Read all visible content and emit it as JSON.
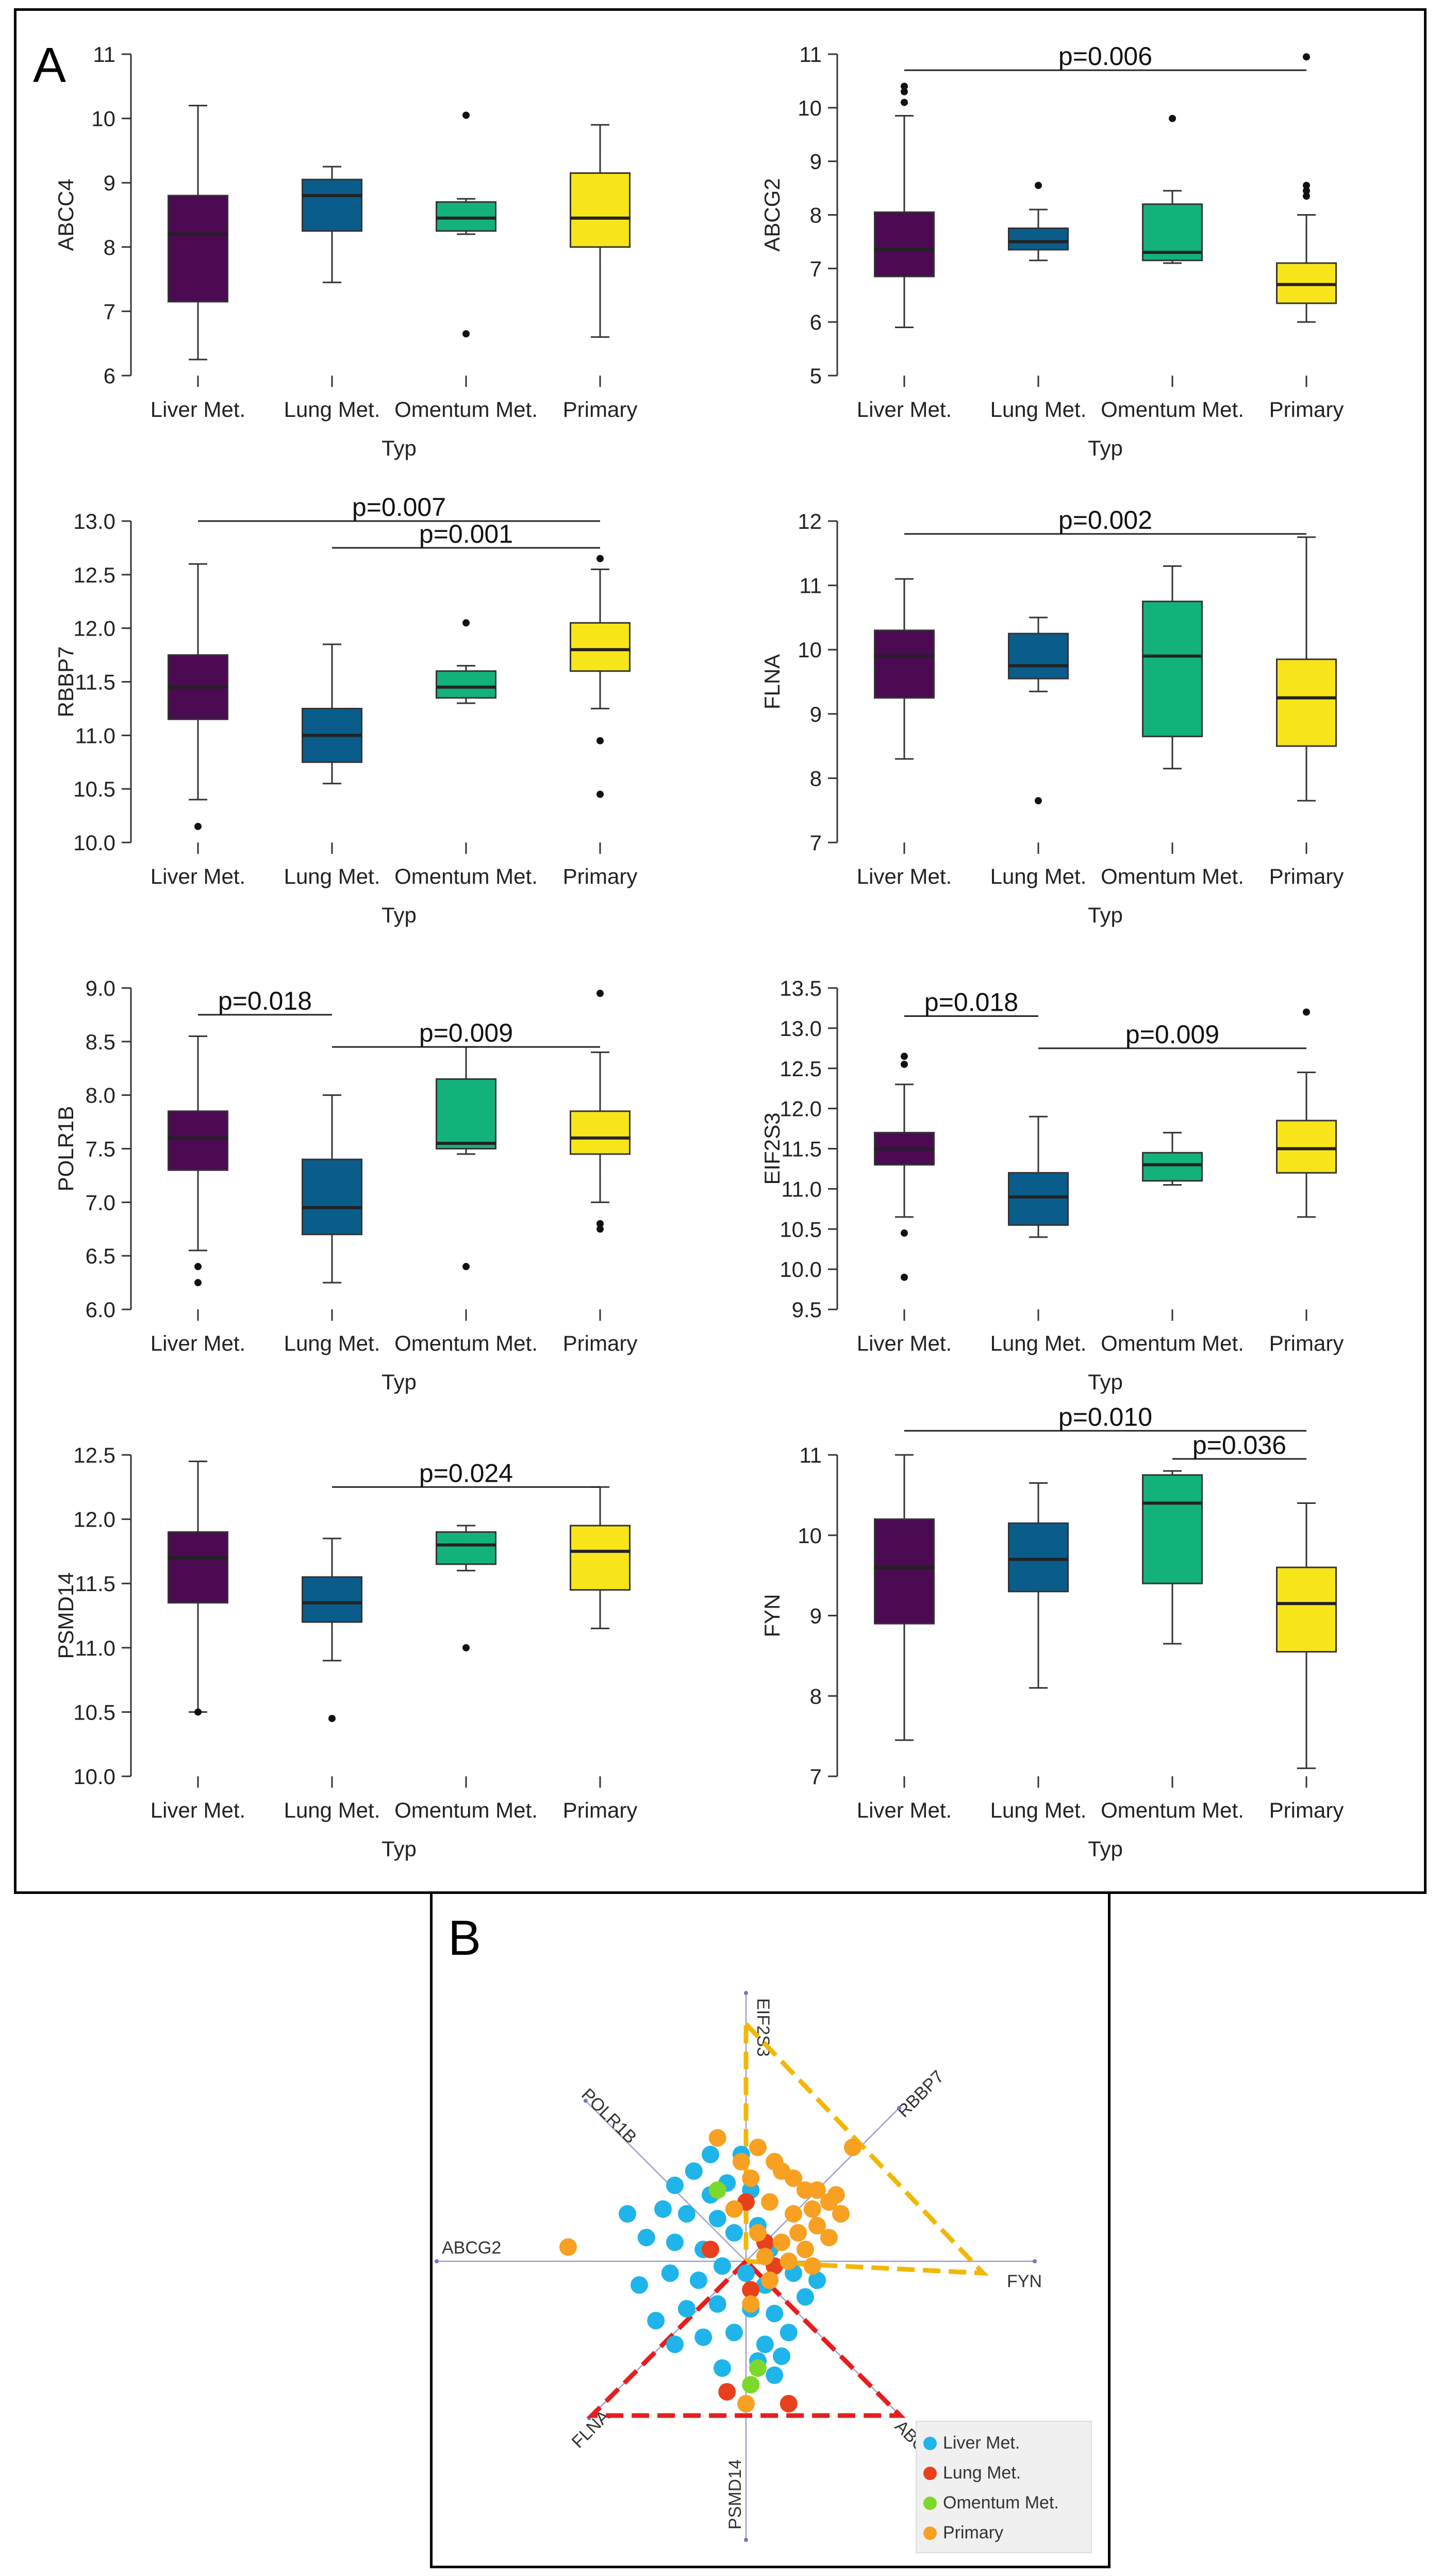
{
  "figure": {
    "panel_a_label": "A",
    "panel_b_label": "B"
  },
  "colors": {
    "Liver Met.": "#4b0a52",
    "Lung Met.": "#0a5d8a",
    "Omentum Met.": "#13b27a",
    "Primary": "#f7e51a"
  },
  "chart_data": [
    {
      "type": "box",
      "id": "abcc4",
      "ylabel": "ABCC4",
      "xlabel": "Typ",
      "categories": [
        "Liver Met.",
        "Lung Met.",
        "Omentum Met.",
        "Primary"
      ],
      "ylim": [
        6,
        11
      ],
      "yticks": [
        "6",
        "7",
        "8",
        "9",
        "10",
        "11"
      ],
      "boxes": [
        {
          "whisker_low": 6.25,
          "q1": 7.15,
          "median": 8.2,
          "q3": 8.8,
          "whisker_high": 10.2,
          "outliers": []
        },
        {
          "whisker_low": 7.45,
          "q1": 8.25,
          "median": 8.8,
          "q3": 9.05,
          "whisker_high": 9.25,
          "outliers": []
        },
        {
          "whisker_low": 8.2,
          "q1": 8.25,
          "median": 8.45,
          "q3": 8.7,
          "whisker_high": 8.75,
          "outliers": [
            10.05,
            6.65
          ]
        },
        {
          "whisker_low": 6.6,
          "q1": 8.0,
          "median": 8.45,
          "q3": 9.15,
          "whisker_high": 9.9,
          "outliers": []
        }
      ],
      "annotations": []
    },
    {
      "type": "box",
      "id": "abcg2",
      "ylabel": "ABCG2",
      "xlabel": "Typ",
      "categories": [
        "Liver Met.",
        "Lung Met.",
        "Omentum Met.",
        "Primary"
      ],
      "ylim": [
        5,
        11
      ],
      "yticks": [
        "5",
        "6",
        "7",
        "8",
        "9",
        "10",
        "11"
      ],
      "boxes": [
        {
          "whisker_low": 5.9,
          "q1": 6.85,
          "median": 7.35,
          "q3": 8.05,
          "whisker_high": 9.85,
          "outliers": [
            10.1,
            10.3,
            10.4
          ]
        },
        {
          "whisker_low": 7.15,
          "q1": 7.35,
          "median": 7.5,
          "q3": 7.75,
          "whisker_high": 8.1,
          "outliers": [
            8.55
          ]
        },
        {
          "whisker_low": 7.1,
          "q1": 7.15,
          "median": 7.3,
          "q3": 8.2,
          "whisker_high": 8.45,
          "outliers": [
            9.8
          ]
        },
        {
          "whisker_low": 6.0,
          "q1": 6.35,
          "median": 6.7,
          "q3": 7.1,
          "whisker_high": 8.0,
          "outliers": [
            8.35,
            8.45,
            8.55,
            10.95
          ]
        }
      ],
      "annotations": [
        {
          "from": 0,
          "to": 3,
          "y": 10.7,
          "label": "p=0.006"
        }
      ]
    },
    {
      "type": "box",
      "id": "rbbp7",
      "ylabel": "RBBP7",
      "xlabel": "Typ",
      "categories": [
        "Liver Met.",
        "Lung Met.",
        "Omentum Met.",
        "Primary"
      ],
      "ylim": [
        10,
        13
      ],
      "yticks": [
        "10.0",
        "10.5",
        "11.0",
        "11.5",
        "12.0",
        "12.5",
        "13.0"
      ],
      "boxes": [
        {
          "whisker_low": 10.4,
          "q1": 11.15,
          "median": 11.45,
          "q3": 11.75,
          "whisker_high": 12.6,
          "outliers": [
            10.15
          ]
        },
        {
          "whisker_low": 10.55,
          "q1": 10.75,
          "median": 11.0,
          "q3": 11.25,
          "whisker_high": 11.85,
          "outliers": []
        },
        {
          "whisker_low": 11.3,
          "q1": 11.35,
          "median": 11.45,
          "q3": 11.6,
          "whisker_high": 11.65,
          "outliers": [
            12.05
          ]
        },
        {
          "whisker_low": 11.25,
          "q1": 11.6,
          "median": 11.8,
          "q3": 12.05,
          "whisker_high": 12.55,
          "outliers": [
            12.65,
            10.95,
            10.45
          ]
        }
      ],
      "annotations": [
        {
          "from": 0,
          "to": 3,
          "y": 13.0,
          "label": "p=0.007"
        },
        {
          "from": 1,
          "to": 3,
          "y": 12.75,
          "label": "p=0.001"
        }
      ]
    },
    {
      "type": "box",
      "id": "flna",
      "ylabel": "FLNA",
      "xlabel": "Typ",
      "categories": [
        "Liver Met.",
        "Lung Met.",
        "Omentum Met.",
        "Primary"
      ],
      "ylim": [
        7,
        12
      ],
      "yticks": [
        "7",
        "8",
        "9",
        "10",
        "11",
        "12"
      ],
      "boxes": [
        {
          "whisker_low": 8.3,
          "q1": 9.25,
          "median": 9.9,
          "q3": 10.3,
          "whisker_high": 11.1,
          "outliers": []
        },
        {
          "whisker_low": 9.35,
          "q1": 9.55,
          "median": 9.75,
          "q3": 10.25,
          "whisker_high": 10.5,
          "outliers": [
            7.65
          ]
        },
        {
          "whisker_low": 8.15,
          "q1": 8.65,
          "median": 9.9,
          "q3": 10.75,
          "whisker_high": 11.3,
          "outliers": []
        },
        {
          "whisker_low": 7.65,
          "q1": 8.5,
          "median": 9.25,
          "q3": 9.85,
          "whisker_high": 11.75,
          "outliers": []
        }
      ],
      "annotations": [
        {
          "from": 0,
          "to": 3,
          "y": 11.8,
          "label": "p=0.002"
        }
      ]
    },
    {
      "type": "box",
      "id": "polr1b",
      "ylabel": "POLR1B",
      "xlabel": "Typ",
      "categories": [
        "Liver Met.",
        "Lung Met.",
        "Omentum Met.",
        "Primary"
      ],
      "ylim": [
        6,
        9
      ],
      "yticks": [
        "6.0",
        "6.5",
        "7.0",
        "7.5",
        "8.0",
        "8.5",
        "9.0"
      ],
      "boxes": [
        {
          "whisker_low": 6.55,
          "q1": 7.3,
          "median": 7.6,
          "q3": 7.85,
          "whisker_high": 8.55,
          "outliers": [
            6.4,
            6.25
          ]
        },
        {
          "whisker_low": 6.25,
          "q1": 6.7,
          "median": 6.95,
          "q3": 7.4,
          "whisker_high": 8.0,
          "outliers": []
        },
        {
          "whisker_low": 7.45,
          "q1": 7.5,
          "median": 7.55,
          "q3": 8.15,
          "whisker_high": 8.45,
          "outliers": [
            6.4
          ]
        },
        {
          "whisker_low": 7.0,
          "q1": 7.45,
          "median": 7.6,
          "q3": 7.85,
          "whisker_high": 8.4,
          "outliers": [
            8.95,
            6.8,
            6.75
          ]
        }
      ],
      "annotations": [
        {
          "from": 0,
          "to": 1,
          "y": 8.75,
          "label": "p=0.018"
        },
        {
          "from": 1,
          "to": 3,
          "y": 8.45,
          "label": "p=0.009"
        }
      ]
    },
    {
      "type": "box",
      "id": "eif2s3",
      "ylabel": "EIF2S3",
      "xlabel": "Typ",
      "categories": [
        "Liver Met.",
        "Lung Met.",
        "Omentum Met.",
        "Primary"
      ],
      "ylim": [
        9.5,
        13.5
      ],
      "yticks": [
        "9.5",
        "10.0",
        "10.5",
        "11.0",
        "11.5",
        "12.0",
        "12.5",
        "13.0",
        "13.5"
      ],
      "boxes": [
        {
          "whisker_low": 10.65,
          "q1": 11.3,
          "median": 11.5,
          "q3": 11.7,
          "whisker_high": 12.3,
          "outliers": [
            12.65,
            12.55,
            10.45,
            9.9
          ]
        },
        {
          "whisker_low": 10.4,
          "q1": 10.55,
          "median": 10.9,
          "q3": 11.2,
          "whisker_high": 11.9,
          "outliers": []
        },
        {
          "whisker_low": 11.05,
          "q1": 11.1,
          "median": 11.3,
          "q3": 11.45,
          "whisker_high": 11.7,
          "outliers": []
        },
        {
          "whisker_low": 10.65,
          "q1": 11.2,
          "median": 11.5,
          "q3": 11.85,
          "whisker_high": 12.45,
          "outliers": [
            13.2
          ]
        }
      ],
      "annotations": [
        {
          "from": 0,
          "to": 1,
          "y": 13.15,
          "label": "p=0.018"
        },
        {
          "from": 1,
          "to": 3,
          "y": 12.75,
          "label": "p=0.009"
        }
      ]
    },
    {
      "type": "box",
      "id": "psmd14",
      "ylabel": "PSMD14",
      "xlabel": "Typ",
      "categories": [
        "Liver Met.",
        "Lung Met.",
        "Omentum Met.",
        "Primary"
      ],
      "ylim": [
        10,
        12.5
      ],
      "yticks": [
        "10.0",
        "10.5",
        "11.0",
        "11.5",
        "12.0",
        "12.5"
      ],
      "boxes": [
        {
          "whisker_low": 10.5,
          "q1": 11.35,
          "median": 11.7,
          "q3": 11.9,
          "whisker_high": 12.45,
          "outliers": [
            10.5
          ]
        },
        {
          "whisker_low": 10.9,
          "q1": 11.2,
          "median": 11.35,
          "q3": 11.55,
          "whisker_high": 11.85,
          "outliers": [
            10.45
          ]
        },
        {
          "whisker_low": 11.6,
          "q1": 11.65,
          "median": 11.8,
          "q3": 11.9,
          "whisker_high": 11.95,
          "outliers": [
            11.0
          ]
        },
        {
          "whisker_low": 11.15,
          "q1": 11.45,
          "median": 11.75,
          "q3": 11.95,
          "whisker_high": 12.25,
          "outliers": []
        }
      ],
      "annotations": [
        {
          "from": 1,
          "to": 3,
          "y": 12.25,
          "label": "p=0.024"
        }
      ]
    },
    {
      "type": "box",
      "id": "fyn",
      "ylabel": "FYN",
      "xlabel": "Typ",
      "categories": [
        "Liver Met.",
        "Lung Met.",
        "Omentum Met.",
        "Primary"
      ],
      "ylim": [
        7,
        11
      ],
      "yticks": [
        "7",
        "8",
        "9",
        "10",
        "11"
      ],
      "boxes": [
        {
          "whisker_low": 7.45,
          "q1": 8.9,
          "median": 9.6,
          "q3": 10.2,
          "whisker_high": 11.0,
          "outliers": []
        },
        {
          "whisker_low": 8.1,
          "q1": 9.3,
          "median": 9.7,
          "q3": 10.15,
          "whisker_high": 10.65,
          "outliers": []
        },
        {
          "whisker_low": 8.65,
          "q1": 9.4,
          "median": 10.4,
          "q3": 10.75,
          "whisker_high": 10.8,
          "outliers": []
        },
        {
          "whisker_low": 7.1,
          "q1": 8.55,
          "median": 9.15,
          "q3": 9.6,
          "whisker_high": 10.4,
          "outliers": []
        }
      ],
      "annotations": [
        {
          "from": 0,
          "to": 3,
          "y": 11.3,
          "label": "p=0.010"
        },
        {
          "from": 2,
          "to": 3,
          "y": 10.95,
          "label": "p=0.036"
        }
      ]
    },
    {
      "type": "scatter",
      "id": "biplot",
      "title": "",
      "axis_labels": [
        "EIF2S3",
        "RBBP7",
        "FYN",
        "ABCC4",
        "PSMD14",
        "FLNA",
        "ABCG2",
        "POLR1B"
      ],
      "axis_angles_deg": [
        90,
        45,
        0,
        -45,
        -90,
        -135,
        180,
        135
      ],
      "legend": [
        "Liver Met.",
        "Lung Met.",
        "Omentum Met.",
        "Primary"
      ],
      "legend_colors": [
        "#1fb4ea",
        "#e8401c",
        "#7cd82a",
        "#f7a021"
      ],
      "triangles": [
        {
          "color": "#f2b705",
          "vertices": [
            [
              0.0,
              1.0
            ],
            [
              1.0,
              -0.05
            ],
            [
              0.0,
              0.0
            ]
          ]
        },
        {
          "color": "#e61e1e",
          "vertices": [
            [
              0.0,
              0.0
            ],
            [
              -0.65,
              -0.65
            ],
            [
              0.65,
              -0.65
            ]
          ]
        }
      ],
      "points": {
        "Liver Met.": [
          [
            -0.3,
            0.32
          ],
          [
            -0.22,
            0.38
          ],
          [
            -0.15,
            0.45
          ],
          [
            -0.08,
            0.33
          ],
          [
            -0.35,
            0.22
          ],
          [
            -0.25,
            0.2
          ],
          [
            -0.12,
            0.18
          ],
          [
            0.02,
            0.3
          ],
          [
            -0.42,
            0.1
          ],
          [
            -0.3,
            0.08
          ],
          [
            -0.18,
            0.05
          ],
          [
            -0.05,
            0.12
          ],
          [
            0.05,
            0.15
          ],
          [
            -0.45,
            -0.1
          ],
          [
            -0.32,
            -0.05
          ],
          [
            -0.2,
            -0.08
          ],
          [
            -0.1,
            -0.02
          ],
          [
            0.0,
            -0.05
          ],
          [
            0.08,
            -0.1
          ],
          [
            -0.38,
            -0.25
          ],
          [
            -0.25,
            -0.2
          ],
          [
            -0.12,
            -0.18
          ],
          [
            0.02,
            -0.2
          ],
          [
            0.12,
            -0.22
          ],
          [
            -0.3,
            -0.35
          ],
          [
            -0.18,
            -0.32
          ],
          [
            -0.05,
            -0.3
          ],
          [
            0.08,
            -0.35
          ],
          [
            0.18,
            -0.3
          ],
          [
            -0.1,
            -0.45
          ],
          [
            0.05,
            -0.42
          ],
          [
            0.15,
            -0.4
          ],
          [
            0.25,
            -0.15
          ],
          [
            0.3,
            -0.08
          ],
          [
            -0.5,
            0.2
          ],
          [
            -0.02,
            0.45
          ],
          [
            0.1,
            0.05
          ],
          [
            0.2,
            -0.05
          ],
          [
            -0.15,
            0.28
          ],
          [
            0.12,
            -0.48
          ]
        ],
        "Lung Met.": [
          [
            -0.15,
            0.05
          ],
          [
            0.02,
            -0.12
          ],
          [
            0.12,
            -0.02
          ],
          [
            -0.08,
            -0.55
          ],
          [
            0.18,
            -0.6
          ],
          [
            0.0,
            0.25
          ],
          [
            0.08,
            0.08
          ]
        ],
        "Omentum Met.": [
          [
            -0.12,
            0.3
          ],
          [
            0.05,
            -0.45
          ],
          [
            0.02,
            -0.52
          ]
        ],
        "Primary": [
          [
            -0.12,
            0.52
          ],
          [
            0.05,
            0.48
          ],
          [
            0.15,
            0.38
          ],
          [
            0.25,
            0.3
          ],
          [
            0.35,
            0.25
          ],
          [
            0.45,
            0.48
          ],
          [
            0.1,
            0.25
          ],
          [
            0.2,
            0.2
          ],
          [
            0.3,
            0.15
          ],
          [
            0.05,
            0.12
          ],
          [
            0.15,
            0.08
          ],
          [
            0.25,
            0.05
          ],
          [
            0.35,
            0.1
          ],
          [
            0.4,
            0.2
          ],
          [
            0.08,
            0.02
          ],
          [
            0.18,
            0.0
          ],
          [
            0.28,
            -0.02
          ],
          [
            0.02,
            0.35
          ],
          [
            -0.05,
            0.22
          ],
          [
            0.22,
            0.12
          ],
          [
            0.1,
            -0.08
          ],
          [
            0.3,
            0.3
          ],
          [
            -0.75,
            0.06
          ],
          [
            0.02,
            -0.18
          ],
          [
            0.2,
            0.35
          ],
          [
            -0.02,
            0.42
          ],
          [
            0.38,
            0.28
          ],
          [
            0.12,
            0.42
          ],
          [
            0.28,
            0.22
          ],
          [
            0.0,
            -0.6
          ]
        ]
      }
    }
  ]
}
